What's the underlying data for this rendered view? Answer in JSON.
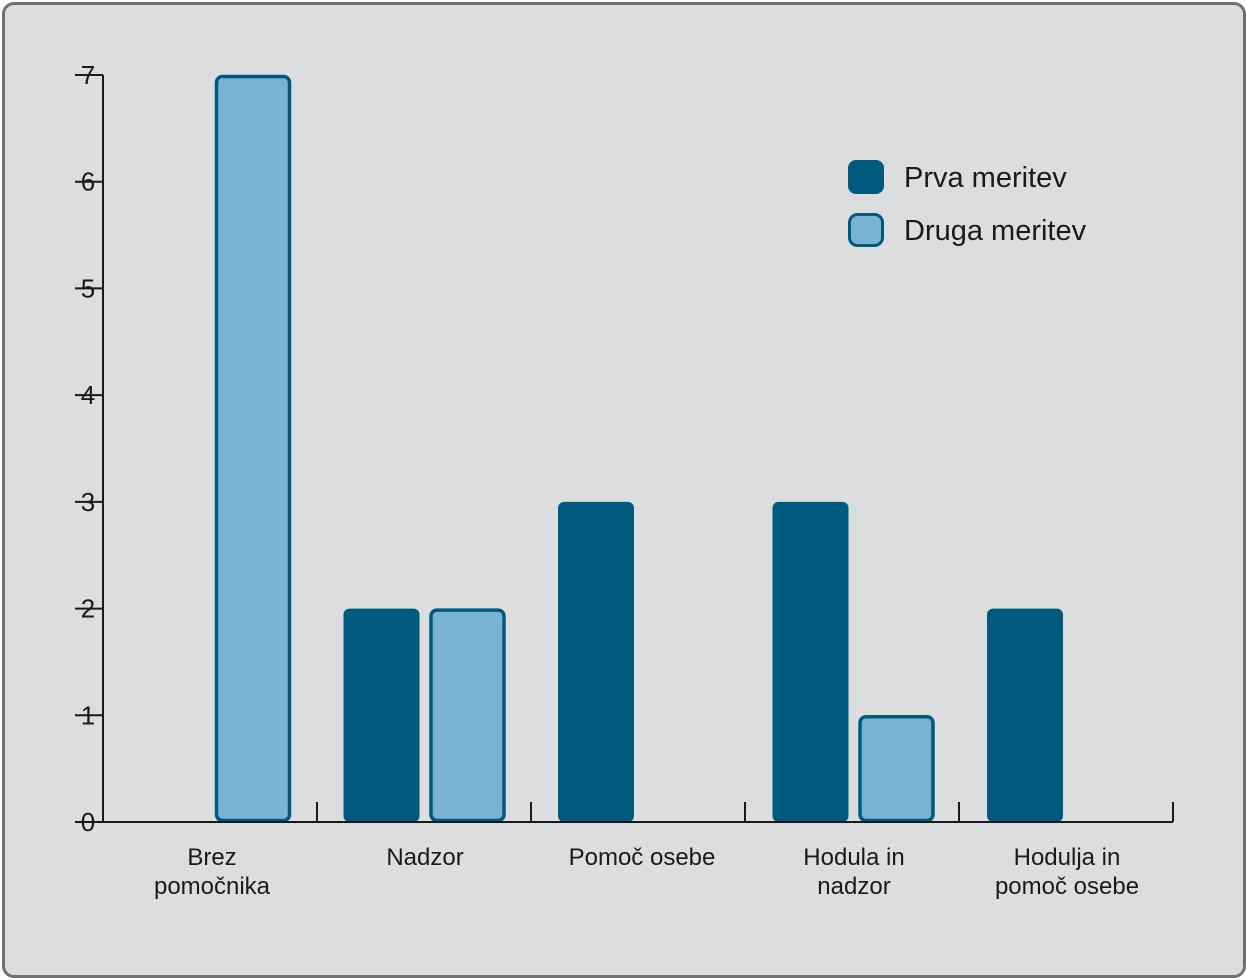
{
  "chart_data": {
    "type": "bar",
    "title": "",
    "xlabel": "",
    "ylabel": "",
    "ylim": [
      0,
      7
    ],
    "yticks": [
      0,
      1,
      2,
      3,
      4,
      5,
      6,
      7
    ],
    "categories": [
      [
        "Brez",
        "pomočnika"
      ],
      [
        "Nadzor"
      ],
      [
        "Pomoč osebe"
      ],
      [
        "Hodula in",
        "nadzor"
      ],
      [
        "Hodulja in",
        "pomoč osebe"
      ]
    ],
    "series": [
      {
        "name": "Prva meritev",
        "color": "#005a7d",
        "values": [
          0,
          2,
          3,
          3,
          2
        ]
      },
      {
        "name": "Druga meritev",
        "color": "#7ab3d1",
        "stroke": "#005a7d",
        "values": [
          7,
          2,
          0,
          1,
          0
        ]
      }
    ],
    "legend_position": "top-right",
    "grid": false
  }
}
